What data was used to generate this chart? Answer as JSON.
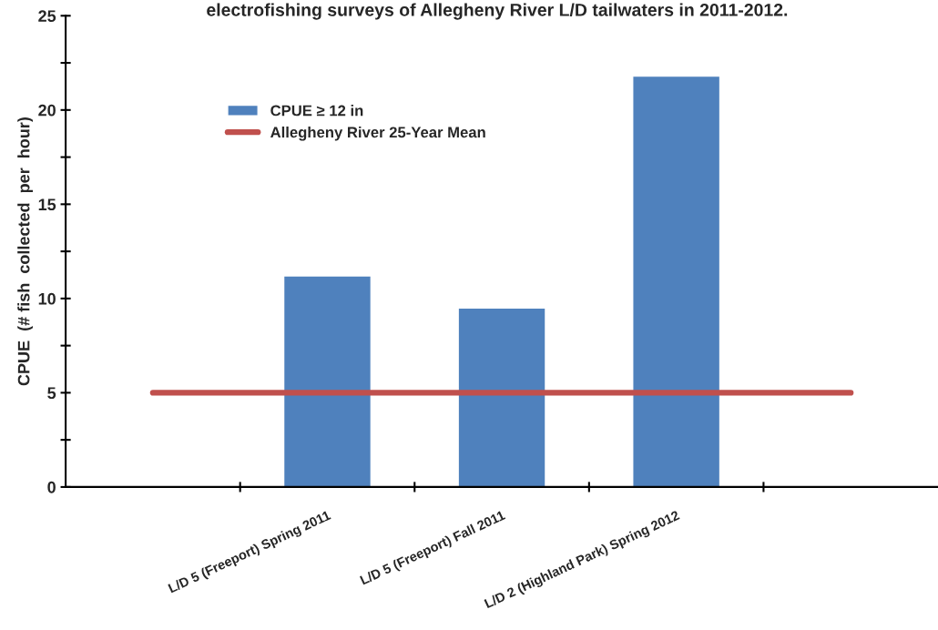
{
  "chart_data": {
    "type": "bar",
    "title": "electrofishing surveys of Allegheny River L/D tailwaters in 2011-2012.",
    "ylabel": "CPUE  (# fish  collected  per  hour)",
    "categories": [
      null,
      "L/D 5 (Freeport) Spring 2011",
      "L/D 5 (Freeport) Fall 2011",
      "L/D 2 (Highland Park) Spring 2012",
      null
    ],
    "series": [
      {
        "name": "CPUE ≥ 12 in",
        "color": "#4f81bd",
        "values": [
          null,
          11.2,
          9.5,
          21.8,
          null
        ]
      },
      {
        "name": "Allegheny River 25-Year Mean",
        "type": "line",
        "color": "#c0504d",
        "values": [
          5,
          5,
          5,
          5,
          5
        ]
      }
    ],
    "ylim": [
      0,
      25
    ],
    "yticks": [
      0,
      {
        "value": 2.5,
        "label": null
      },
      5,
      {
        "value": 7.5,
        "label": null
      },
      10,
      {
        "value": 12.5,
        "label": null
      },
      15,
      {
        "value": 17.5,
        "label": null
      },
      20,
      {
        "value": 22.5,
        "label": null
      },
      25
    ],
    "grid": false,
    "legend": "top left"
  }
}
